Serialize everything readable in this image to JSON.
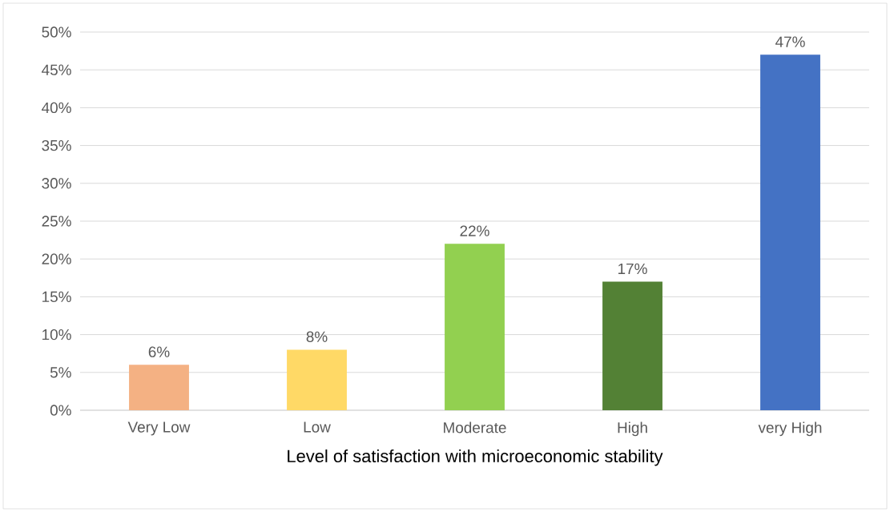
{
  "chart_data": {
    "type": "bar",
    "xlabel": "Level of satisfaction with microeconomic stability",
    "categories": [
      "Very Low",
      "Low",
      "Moderate",
      "High",
      "very High"
    ],
    "values": [
      6,
      8,
      22,
      17,
      47
    ],
    "colors": [
      "#f4b183",
      "#ffd966",
      "#92d050",
      "#538135",
      "#4472c4"
    ],
    "value_labels": [
      "6%",
      "8%",
      "22%",
      "17%",
      "47%"
    ],
    "ylim": [
      0,
      50
    ],
    "yticks": [
      {
        "value": 0,
        "label": "0%"
      },
      {
        "value": 5,
        "label": "5%"
      },
      {
        "value": 10,
        "label": "10%"
      },
      {
        "value": 15,
        "label": "15%"
      },
      {
        "value": 20,
        "label": "20%"
      },
      {
        "value": 25,
        "label": "25%"
      },
      {
        "value": 30,
        "label": "30%"
      },
      {
        "value": 35,
        "label": "35%"
      },
      {
        "value": 40,
        "label": "40%"
      },
      {
        "value": 45,
        "label": "45%"
      },
      {
        "value": 50,
        "label": "50%"
      }
    ],
    "grid": "y"
  }
}
